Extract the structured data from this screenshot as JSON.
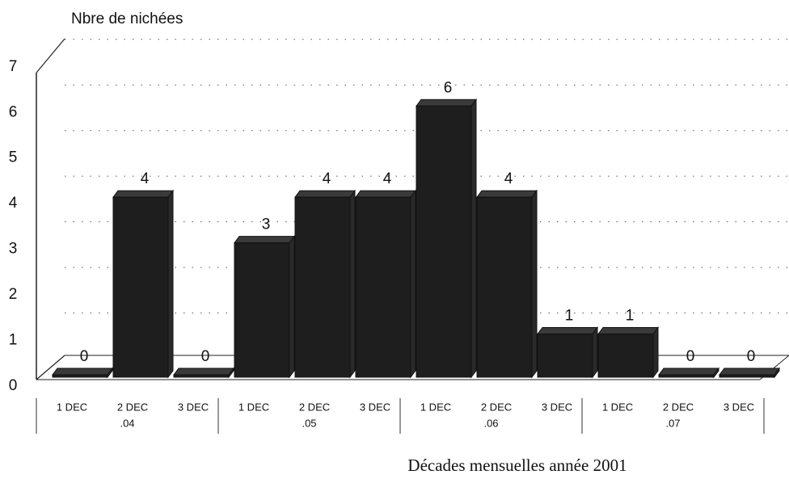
{
  "chart_data": {
    "type": "bar",
    "y_axis_label": "Nbre de nichées",
    "x_axis_label": "Décades mensuelles année 2001",
    "categories": [
      "1 DEC",
      "2 DEC",
      "3 DEC",
      "1 DEC",
      "2 DEC",
      "3 DEC",
      "1 DEC",
      "2 DEC",
      "3 DEC",
      "1 DEC",
      "2 DEC",
      "3 DEC"
    ],
    "groups": [
      ".04",
      ".05",
      ".06",
      ".07"
    ],
    "values": [
      0,
      4,
      0,
      3,
      4,
      4,
      6,
      4,
      1,
      1,
      0,
      0
    ],
    "color": "#1e1e1e",
    "ylim": [
      0,
      7
    ],
    "yticks": [
      0,
      1,
      2,
      3,
      4,
      5,
      6,
      7
    ],
    "grid": true
  }
}
